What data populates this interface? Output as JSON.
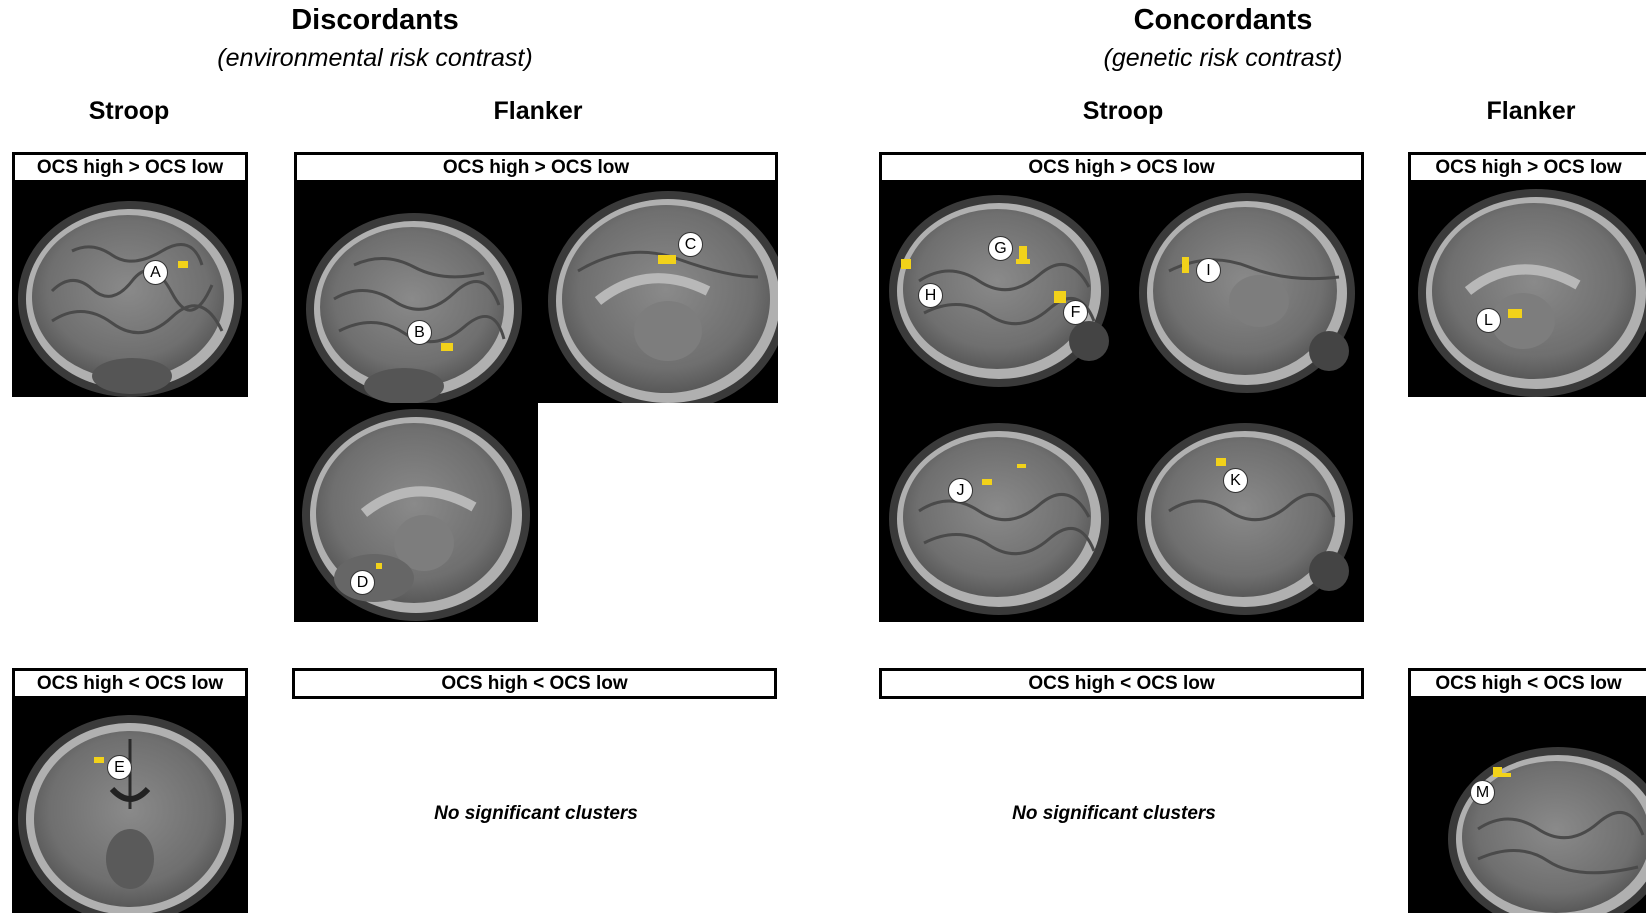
{
  "groups": [
    {
      "title": "Discordants",
      "subtitle": "(environmental risk contrast)"
    },
    {
      "title": "Concordants",
      "subtitle": "(genetic risk contrast)"
    }
  ],
  "columns": {
    "disc_stroop": "Stroop",
    "disc_flanker": "Flanker",
    "conc_stroop": "Stroop",
    "conc_flanker": "Flanker"
  },
  "contrasts": {
    "high_gt_low": "OCS high > OCS low",
    "high_lt_low": "OCS high < OCS low"
  },
  "no_clusters": "No significant clusters",
  "cluster_labels": [
    "A",
    "B",
    "C",
    "D",
    "E",
    "F",
    "G",
    "H",
    "I",
    "J",
    "K",
    "L",
    "M"
  ],
  "colors": {
    "activation": "#f2d21a",
    "background": "#000000"
  },
  "icons": {
    "brain_slice": "sagittal-brain-mri",
    "brain_coronal": "coronal-brain-mri"
  }
}
